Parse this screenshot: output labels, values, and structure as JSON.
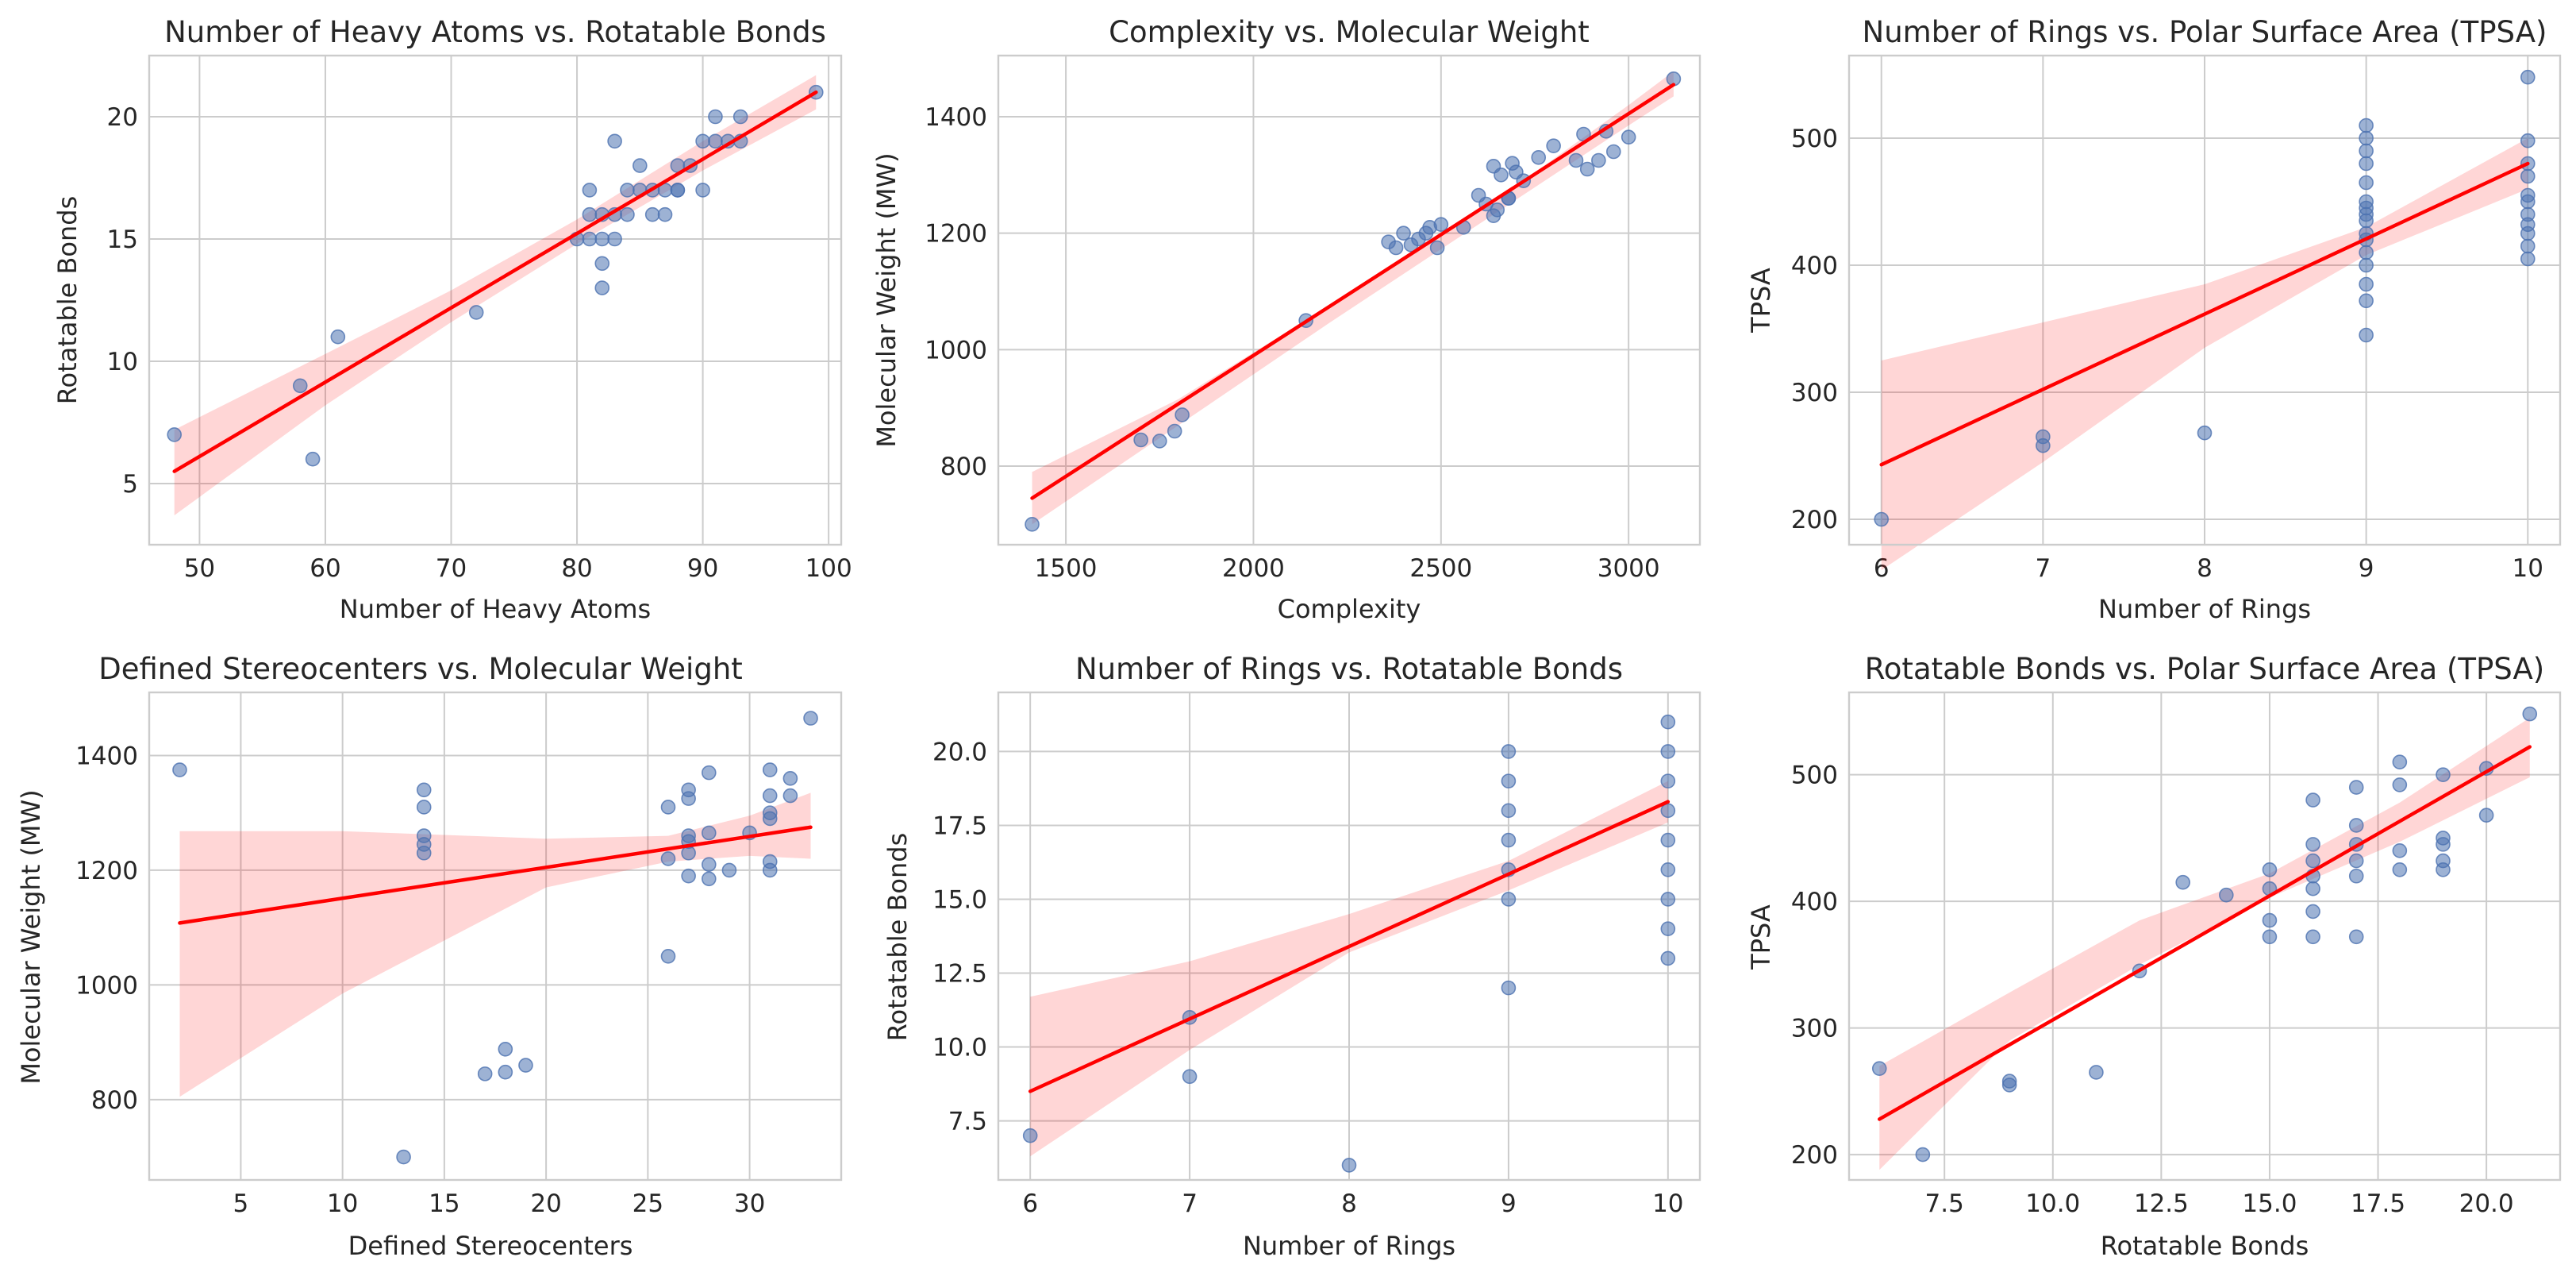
{
  "chart_data": [
    {
      "type": "scatter",
      "title": "Number of Heavy Atoms vs. Rotatable Bonds",
      "xlabel": "Number of Heavy Atoms",
      "ylabel": "Rotatable Bonds",
      "xlim": [
        46,
        101
      ],
      "ylim": [
        2.5,
        22.5
      ],
      "xticks": [
        50,
        60,
        70,
        80,
        90,
        100
      ],
      "yticks": [
        5,
        10,
        15,
        20
      ],
      "points": [
        [
          48,
          7
        ],
        [
          58,
          9
        ],
        [
          59,
          6
        ],
        [
          61,
          11
        ],
        [
          72,
          12
        ],
        [
          80,
          15
        ],
        [
          81,
          16
        ],
        [
          81,
          17
        ],
        [
          81,
          15
        ],
        [
          82,
          16
        ],
        [
          82,
          14
        ],
        [
          82,
          13
        ],
        [
          82,
          15
        ],
        [
          83,
          19
        ],
        [
          83,
          16
        ],
        [
          83,
          15
        ],
        [
          84,
          17
        ],
        [
          85,
          18
        ],
        [
          85,
          17
        ],
        [
          86,
          17
        ],
        [
          87,
          16
        ],
        [
          87,
          17
        ],
        [
          88,
          18
        ],
        [
          88,
          17
        ],
        [
          89,
          18
        ],
        [
          90,
          19
        ],
        [
          90,
          17
        ],
        [
          91,
          19
        ],
        [
          91,
          20
        ],
        [
          92,
          19
        ],
        [
          93,
          20
        ],
        [
          93,
          19
        ],
        [
          99,
          21
        ],
        [
          84,
          16
        ],
        [
          86,
          16
        ],
        [
          88,
          17
        ]
      ],
      "fit_line": [
        [
          48,
          5.5
        ],
        [
          99,
          21
        ]
      ],
      "ci_band": {
        "x": [
          48,
          60,
          70,
          80,
          90,
          99
        ],
        "lower": [
          3.7,
          8.2,
          11.6,
          14.8,
          17.8,
          20.3
        ],
        "upper": [
          7.2,
          10.3,
          12.9,
          15.8,
          19.0,
          21.7
        ]
      }
    },
    {
      "type": "scatter",
      "title": "Complexity vs. Molecular Weight",
      "xlabel": "Complexity",
      "ylabel": "Molecular Weight (MW)",
      "xlim": [
        1320,
        3190
      ],
      "ylim": [
        665,
        1505
      ],
      "xticks": [
        1500,
        2000,
        2500,
        3000
      ],
      "yticks": [
        800,
        1000,
        1200,
        1400
      ],
      "points": [
        [
          1410,
          700
        ],
        [
          1700,
          845
        ],
        [
          1750,
          843
        ],
        [
          1790,
          860
        ],
        [
          1810,
          888
        ],
        [
          2140,
          1050
        ],
        [
          2360,
          1185
        ],
        [
          2380,
          1175
        ],
        [
          2400,
          1200
        ],
        [
          2420,
          1180
        ],
        [
          2440,
          1190
        ],
        [
          2460,
          1200
        ],
        [
          2470,
          1210
        ],
        [
          2490,
          1175
        ],
        [
          2500,
          1215
        ],
        [
          2560,
          1210
        ],
        [
          2600,
          1265
        ],
        [
          2620,
          1250
        ],
        [
          2640,
          1230
        ],
        [
          2650,
          1240
        ],
        [
          2660,
          1300
        ],
        [
          2680,
          1260
        ],
        [
          2690,
          1320
        ],
        [
          2700,
          1305
        ],
        [
          2720,
          1290
        ],
        [
          2760,
          1330
        ],
        [
          2800,
          1350
        ],
        [
          2860,
          1325
        ],
        [
          2880,
          1370
        ],
        [
          2890,
          1310
        ],
        [
          2920,
          1325
        ],
        [
          2940,
          1375
        ],
        [
          2960,
          1340
        ],
        [
          3000,
          1365
        ],
        [
          3120,
          1465
        ],
        [
          2680,
          1260
        ],
        [
          2640,
          1315
        ]
      ],
      "fit_line": [
        [
          1410,
          745
        ],
        [
          3120,
          1455
        ]
      ],
      "ci_band": {
        "x": [
          1410,
          1800,
          2200,
          2600,
          3000,
          3120
        ],
        "lower": [
          700,
          870,
          1045,
          1215,
          1385,
          1435
        ],
        "upper": [
          790,
          915,
          1075,
          1235,
          1420,
          1478
        ]
      }
    },
    {
      "type": "scatter",
      "title": "Number of Rings vs. Polar Surface Area (TPSA)",
      "xlabel": "Number of Rings",
      "ylabel": "TPSA",
      "xlim": [
        5.8,
        10.2
      ],
      "ylim": [
        180,
        565
      ],
      "xticks": [
        6,
        7,
        8,
        9,
        10
      ],
      "yticks": [
        200,
        300,
        400,
        500
      ],
      "points": [
        [
          6,
          200
        ],
        [
          7,
          265
        ],
        [
          7,
          258
        ],
        [
          8,
          268
        ],
        [
          9,
          345
        ],
        [
          9,
          372
        ],
        [
          9,
          385
        ],
        [
          9,
          400
        ],
        [
          9,
          410
        ],
        [
          9,
          425
        ],
        [
          9,
          435
        ],
        [
          9,
          440
        ],
        [
          9,
          450
        ],
        [
          9,
          465
        ],
        [
          9,
          480
        ],
        [
          9,
          490
        ],
        [
          9,
          500
        ],
        [
          9,
          510
        ],
        [
          9,
          420
        ],
        [
          9,
          445
        ],
        [
          10,
          405
        ],
        [
          10,
          415
        ],
        [
          10,
          425
        ],
        [
          10,
          432
        ],
        [
          10,
          440
        ],
        [
          10,
          450
        ],
        [
          10,
          455
        ],
        [
          10,
          470
        ],
        [
          10,
          480
        ],
        [
          10,
          498
        ],
        [
          10,
          548
        ]
      ],
      "fit_line": [
        [
          6,
          243
        ],
        [
          10,
          480
        ]
      ],
      "ci_band": {
        "x": [
          6,
          7,
          8,
          9,
          10
        ],
        "lower": [
          160,
          245,
          335,
          408,
          460
        ],
        "upper": [
          325,
          355,
          385,
          430,
          500
        ]
      }
    },
    {
      "type": "scatter",
      "title": "Defined Stereocenters vs. Molecular Weight",
      "xlabel": "Defined Stereocenters",
      "ylabel": "Molecular Weight (MW)",
      "xlim": [
        0.5,
        34.5
      ],
      "ylim": [
        660,
        1510
      ],
      "xticks": [
        5,
        10,
        15,
        20,
        25,
        30
      ],
      "yticks": [
        800,
        1000,
        1200,
        1400
      ],
      "points": [
        [
          2,
          1375
        ],
        [
          13,
          700
        ],
        [
          14,
          1230
        ],
        [
          14,
          1260
        ],
        [
          14,
          1310
        ],
        [
          14,
          1340
        ],
        [
          17,
          845
        ],
        [
          18,
          848
        ],
        [
          18,
          888
        ],
        [
          19,
          860
        ],
        [
          26,
          1050
        ],
        [
          26,
          1220
        ],
        [
          26,
          1310
        ],
        [
          27,
          1190
        ],
        [
          27,
          1230
        ],
        [
          27,
          1250
        ],
        [
          27,
          1325
        ],
        [
          27,
          1340
        ],
        [
          28,
          1185
        ],
        [
          28,
          1210
        ],
        [
          28,
          1265
        ],
        [
          28,
          1370
        ],
        [
          29,
          1200
        ],
        [
          30,
          1265
        ],
        [
          31,
          1200
        ],
        [
          31,
          1215
        ],
        [
          31,
          1290
        ],
        [
          31,
          1300
        ],
        [
          31,
          1330
        ],
        [
          31,
          1375
        ],
        [
          32,
          1330
        ],
        [
          32,
          1360
        ],
        [
          33,
          1465
        ],
        [
          14,
          1245
        ],
        [
          27,
          1260
        ]
      ],
      "fit_line": [
        [
          2,
          1108
        ],
        [
          33,
          1275
        ]
      ],
      "ci_band": {
        "x": [
          2,
          10,
          20,
          26,
          30,
          33
        ],
        "lower": [
          805,
          985,
          1170,
          1215,
          1225,
          1220
        ],
        "upper": [
          1268,
          1268,
          1255,
          1260,
          1295,
          1335
        ]
      }
    },
    {
      "type": "scatter",
      "title": "Number of Rings vs. Rotatable Bonds",
      "xlabel": "Number of Rings",
      "ylabel": "Rotatable Bonds",
      "xlim": [
        5.8,
        10.2
      ],
      "ylim": [
        5.5,
        22
      ],
      "xticks": [
        6,
        7,
        8,
        9,
        10
      ],
      "yticks": [
        7.5,
        10.0,
        12.5,
        15.0,
        17.5,
        20.0
      ],
      "points": [
        [
          6,
          7
        ],
        [
          7,
          9
        ],
        [
          7,
          11
        ],
        [
          8,
          6
        ],
        [
          9,
          12
        ],
        [
          9,
          15
        ],
        [
          9,
          16
        ],
        [
          9,
          17
        ],
        [
          9,
          18
        ],
        [
          9,
          19
        ],
        [
          9,
          20
        ],
        [
          10,
          13
        ],
        [
          10,
          14
        ],
        [
          10,
          15
        ],
        [
          10,
          16
        ],
        [
          10,
          17
        ],
        [
          10,
          18
        ],
        [
          10,
          19
        ],
        [
          10,
          20
        ],
        [
          10,
          21
        ]
      ],
      "fit_line": [
        [
          6,
          8.5
        ],
        [
          10,
          18.3
        ]
      ],
      "ci_band": {
        "x": [
          6,
          7,
          8,
          9,
          10
        ],
        "lower": [
          6.3,
          9.9,
          13.2,
          15.3,
          17.6
        ],
        "upper": [
          11.7,
          12.9,
          14.5,
          16.3,
          19.0
        ]
      }
    },
    {
      "type": "scatter",
      "title": "Rotatable Bonds vs. Polar Surface Area (TPSA)",
      "xlabel": "Rotatable Bonds",
      "ylabel": "TPSA",
      "xlim": [
        5.3,
        21.7
      ],
      "ylim": [
        180,
        565
      ],
      "xticks": [
        7.5,
        10.0,
        12.5,
        15.0,
        17.5,
        20.0
      ],
      "yticks": [
        200,
        300,
        400,
        500
      ],
      "points": [
        [
          6,
          268
        ],
        [
          7,
          200
        ],
        [
          9,
          258
        ],
        [
          9,
          255
        ],
        [
          11,
          265
        ],
        [
          12,
          345
        ],
        [
          13,
          415
        ],
        [
          14,
          405
        ],
        [
          15,
          425
        ],
        [
          15,
          372
        ],
        [
          15,
          385
        ],
        [
          15,
          410
        ],
        [
          16,
          372
        ],
        [
          16,
          392
        ],
        [
          16,
          410
        ],
        [
          16,
          420
        ],
        [
          16,
          432
        ],
        [
          16,
          445
        ],
        [
          16,
          480
        ],
        [
          17,
          372
        ],
        [
          17,
          420
        ],
        [
          17,
          432
        ],
        [
          17,
          445
        ],
        [
          17,
          460
        ],
        [
          17,
          490
        ],
        [
          18,
          425
        ],
        [
          18,
          440
        ],
        [
          18,
          492
        ],
        [
          18,
          510
        ],
        [
          19,
          425
        ],
        [
          19,
          432
        ],
        [
          19,
          445
        ],
        [
          19,
          450
        ],
        [
          19,
          500
        ],
        [
          20,
          468
        ],
        [
          20,
          505
        ],
        [
          21,
          548
        ]
      ],
      "fit_line": [
        [
          6,
          228
        ],
        [
          21,
          522
        ]
      ],
      "ci_band": {
        "x": [
          6,
          9,
          12,
          15,
          18,
          21
        ],
        "lower": [
          188,
          290,
          350,
          403,
          447,
          498
        ],
        "upper": [
          270,
          328,
          385,
          422,
          478,
          545
        ]
      }
    }
  ]
}
